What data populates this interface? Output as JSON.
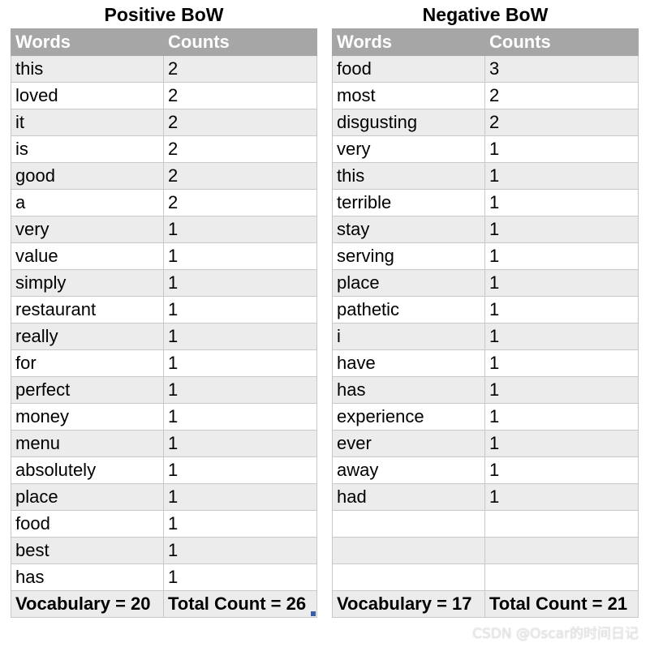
{
  "positive": {
    "title": "Positive BoW",
    "header": {
      "words": "Words",
      "counts": "Counts"
    },
    "rows": [
      {
        "word": "this",
        "count": "2"
      },
      {
        "word": "loved",
        "count": "2"
      },
      {
        "word": "it",
        "count": "2"
      },
      {
        "word": "is",
        "count": "2"
      },
      {
        "word": "good",
        "count": "2"
      },
      {
        "word": "a",
        "count": "2"
      },
      {
        "word": "very",
        "count": "1"
      },
      {
        "word": "value",
        "count": "1"
      },
      {
        "word": "simply",
        "count": "1"
      },
      {
        "word": "restaurant",
        "count": "1"
      },
      {
        "word": "really",
        "count": "1"
      },
      {
        "word": "for",
        "count": "1"
      },
      {
        "word": "perfect",
        "count": "1"
      },
      {
        "word": "money",
        "count": "1"
      },
      {
        "word": "menu",
        "count": "1"
      },
      {
        "word": "absolutely",
        "count": "1"
      },
      {
        "word": "place",
        "count": "1"
      },
      {
        "word": "food",
        "count": "1"
      },
      {
        "word": "best",
        "count": "1"
      },
      {
        "word": "has",
        "count": "1"
      }
    ],
    "footer": {
      "vocabulary": "Vocabulary = 20",
      "total": "Total Count = 26"
    }
  },
  "negative": {
    "title": "Negative BoW",
    "header": {
      "words": "Words",
      "counts": "Counts"
    },
    "rows": [
      {
        "word": "food",
        "count": "3"
      },
      {
        "word": "most",
        "count": "2"
      },
      {
        "word": "disgusting",
        "count": "2"
      },
      {
        "word": "very",
        "count": "1"
      },
      {
        "word": "this",
        "count": "1"
      },
      {
        "word": "terrible",
        "count": "1"
      },
      {
        "word": "stay",
        "count": "1"
      },
      {
        "word": "serving",
        "count": "1"
      },
      {
        "word": "place",
        "count": "1"
      },
      {
        "word": "pathetic",
        "count": "1"
      },
      {
        "word": "i",
        "count": "1"
      },
      {
        "word": "have",
        "count": "1"
      },
      {
        "word": "has",
        "count": "1"
      },
      {
        "word": "experience",
        "count": "1"
      },
      {
        "word": "ever",
        "count": "1"
      },
      {
        "word": "away",
        "count": "1"
      },
      {
        "word": "had",
        "count": "1"
      },
      {
        "word": "",
        "count": ""
      },
      {
        "word": "",
        "count": ""
      },
      {
        "word": "",
        "count": ""
      }
    ],
    "footer": {
      "vocabulary": "Vocabulary = 17",
      "total": "Total Count = 21"
    }
  },
  "watermark": "CSDN @Oscar的时间日记"
}
